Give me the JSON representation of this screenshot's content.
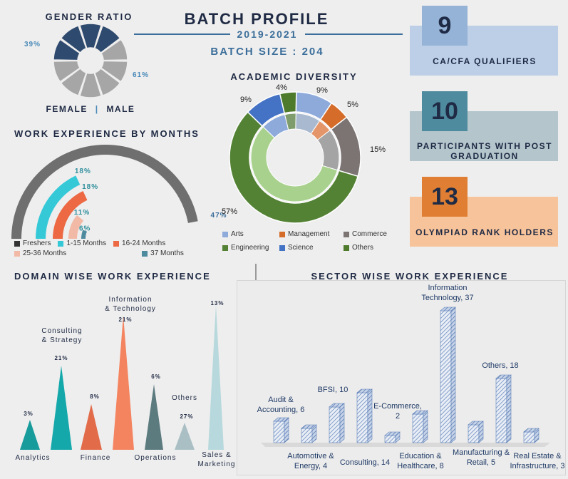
{
  "header": {
    "title": "BATCH PROFILE",
    "years": "2019-2021",
    "batch_size": "BATCH SIZE : 204"
  },
  "gender": {
    "title": "GENDER RATIO",
    "female_pct": "39%",
    "male_pct": "61%",
    "female_label": "FEMALE",
    "separator": "|",
    "male_label": "MALE"
  },
  "work_exp": {
    "title": "WORK EXPERIENCE BY MONTHS"
  },
  "academic": {
    "title": "ACADEMIC DIVERSITY"
  },
  "cards": [
    {
      "number": "9",
      "label": "CA/CFA QUALIFIERS",
      "band": "#bccfe6",
      "tile": "#95b3d7"
    },
    {
      "number": "10",
      "label": "PARTICIPANTS WITH POST GRADUATION",
      "band": "#b4c5cc",
      "tile": "#4f8b9f"
    },
    {
      "number": "13",
      "label": "OLYMPIAD RANK HOLDERS",
      "band": "#f7c39a",
      "tile": "#e07f33"
    }
  ],
  "domain": {
    "title": "DOMAIN WISE WORK EXPERIENCE"
  },
  "sector": {
    "title": "SECTOR WISE WORK EXPERIENCE"
  },
  "chart_data": [
    {
      "type": "pie",
      "name": "gender",
      "categories": [
        "Female",
        "Male"
      ],
      "values": [
        39,
        61
      ],
      "colors": [
        "#2e4a6e",
        "#a6a6a6"
      ]
    },
    {
      "type": "bar",
      "name": "work_experience_months",
      "categories": [
        "Freshers",
        "1-15 Months",
        "16-24 Months",
        "25-36 Months",
        "37 Months"
      ],
      "values": [
        47,
        18,
        18,
        11,
        6
      ],
      "labels": [
        "47%",
        "18%",
        "18%",
        "11%",
        "6%"
      ],
      "colors": [
        "#6f6f6f",
        "#35c9d8",
        "#ec6944",
        "#f2b9a6",
        "#4f8b9f"
      ]
    },
    {
      "type": "pie",
      "name": "academic_diversity",
      "categories": [
        "Arts",
        "Management",
        "Commerce",
        "Engineering",
        "Science",
        "Others"
      ],
      "values": [
        9,
        5,
        15,
        57,
        9,
        4
      ],
      "labels": [
        "9%",
        "5%",
        "15%",
        "57%",
        "9%",
        "4%"
      ],
      "colors": [
        "#8eaadb",
        "#d56c2a",
        "#7c7473",
        "#548235",
        "#4472c4",
        "#4e7a2c"
      ],
      "inner_colors": [
        "#a9b9cf",
        "#e4956a",
        "#a4a4a4",
        "#a9d18e",
        "#8eaadb",
        "#7f9d6c"
      ]
    },
    {
      "type": "bar",
      "name": "domain_wise",
      "categories": [
        "Analytics",
        "Consulting & Strategy",
        "Finance",
        "Information & Technology",
        "Operations",
        "Others",
        "Sales & Marketing"
      ],
      "values": [
        3,
        21,
        8,
        21,
        6,
        27,
        13
      ],
      "labels": [
        "3%",
        "21%",
        "8%",
        "21%",
        "6%",
        "27%",
        "13%"
      ],
      "colors": [
        "#179b9b",
        "#14a8aa",
        "#e26b4a",
        "#f4845f",
        "#5c7b7f",
        "#a9bfc4",
        "#b7d8dc"
      ]
    },
    {
      "type": "bar",
      "name": "sector_wise",
      "categories": [
        "Audit & Accounting",
        "Automotive & Energy",
        "BFSI",
        "Consulting",
        "E-Commerce",
        "Education & Healthcare",
        "Information Technology",
        "Manufacturing & Retail",
        "Others",
        "Real Estate & Infrastructure"
      ],
      "values": [
        6,
        4,
        10,
        14,
        2,
        8,
        37,
        5,
        18,
        3
      ],
      "labels": [
        "Audit & Accounting, 6",
        "Automotive & Energy, 4",
        "BFSI, 10",
        "Consulting, 14",
        "E-Commerce, 2",
        "Education & Healthcare, 8",
        "Information Technology, 37",
        "Manufacturing & Retail, 5",
        "Others, 18",
        "Real Estate & Infrastructure, 3"
      ]
    }
  ]
}
